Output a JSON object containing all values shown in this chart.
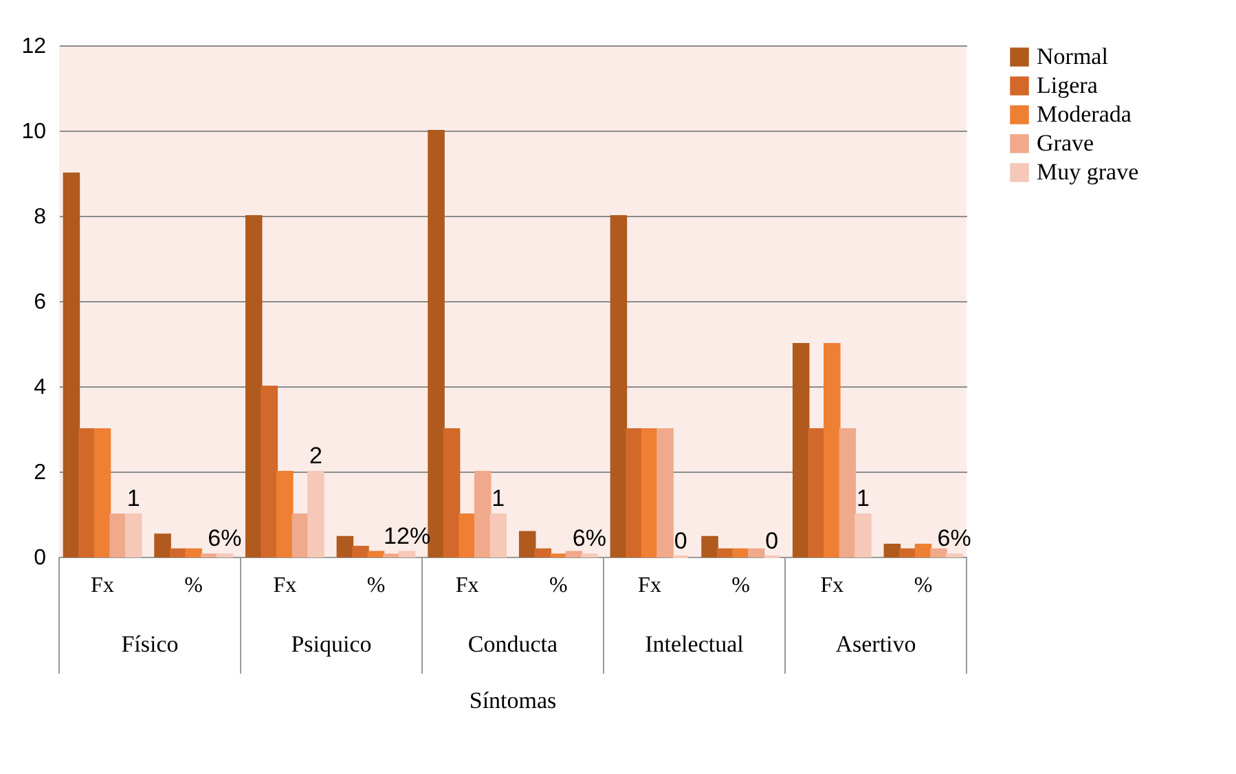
{
  "chart_data": {
    "type": "bar",
    "xlabel": "Síntomas",
    "categories": [
      "Fx",
      "%",
      "Fx",
      "%",
      "Fx",
      "%",
      "Fx",
      "%",
      "Fx",
      "%"
    ],
    "annotations": [
      "Físico",
      "Psiquico",
      "Conducta",
      "Intelectual",
      "Asertivo"
    ],
    "series": [
      {
        "name": "Normal",
        "color": "#b05a1e",
        "values": [
          9,
          0.53,
          8,
          0.47,
          10,
          0.59,
          8,
          0.47,
          5,
          0.29
        ]
      },
      {
        "name": "Ligera",
        "color": "#d2692a",
        "values": [
          3,
          0.18,
          4,
          0.24,
          3,
          0.18,
          3,
          0.18,
          3,
          0.18
        ]
      },
      {
        "name": "Moderada",
        "color": "#ee7f33",
        "values": [
          3,
          0.18,
          2,
          0.12,
          1,
          0.06,
          3,
          0.18,
          5,
          0.29
        ]
      },
      {
        "name": "Grave",
        "color": "#f0a98a",
        "values": [
          1,
          0.06,
          1,
          0.06,
          2,
          0.12,
          3,
          0.18,
          3,
          0.18
        ]
      },
      {
        "name": "Muy grave",
        "color": "#f5c8b8",
        "values": [
          1,
          0.06,
          2,
          0.12,
          1,
          0.06,
          0,
          0,
          1,
          0.06
        ],
        "value_labels": [
          "1",
          "6%",
          "2",
          "12%",
          "1",
          "6%",
          "0",
          "0",
          "1",
          "6%"
        ]
      }
    ],
    "ylim": [
      0,
      12
    ],
    "yticks": [
      0,
      2,
      4,
      6,
      8,
      10,
      12
    ],
    "grid": "y",
    "legend": "right"
  }
}
